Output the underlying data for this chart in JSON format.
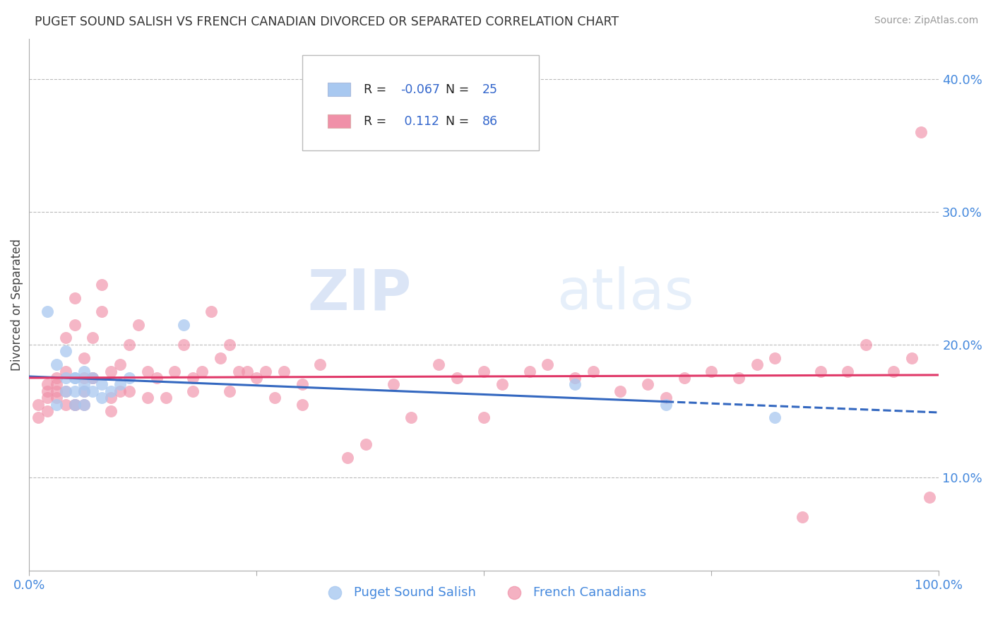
{
  "title": "PUGET SOUND SALISH VS FRENCH CANADIAN DIVORCED OR SEPARATED CORRELATION CHART",
  "source": "Source: ZipAtlas.com",
  "ylabel": "Divorced or Separated",
  "watermark_zip": "ZIP",
  "watermark_atlas": "atlas",
  "x_min": 0.0,
  "x_max": 1.0,
  "y_min": 0.03,
  "y_max": 0.43,
  "y_ticks": [
    0.1,
    0.2,
    0.3,
    0.4
  ],
  "x_ticks": [
    0.0,
    0.25,
    0.5,
    0.75,
    1.0
  ],
  "x_tick_labels": [
    "0.0%",
    "",
    "",
    "",
    "100.0%"
  ],
  "y_tick_labels": [
    "10.0%",
    "20.0%",
    "30.0%",
    "40.0%"
  ],
  "blue_R": -0.067,
  "blue_N": 25,
  "pink_R": 0.112,
  "pink_N": 86,
  "blue_color": "#A8C8F0",
  "pink_color": "#F090A8",
  "blue_line_color": "#3468C0",
  "pink_line_color": "#E03868",
  "grid_color": "#BBBBBB",
  "title_color": "#333333",
  "axis_color": "#4488DD",
  "legend_label_color": "#222222",
  "legend_value_color": "#3366CC",
  "blue_x": [
    0.02,
    0.03,
    0.04,
    0.04,
    0.04,
    0.05,
    0.05,
    0.05,
    0.06,
    0.06,
    0.06,
    0.07,
    0.07,
    0.08,
    0.08,
    0.09,
    0.03,
    0.05,
    0.06,
    0.1,
    0.11,
    0.17,
    0.6,
    0.7,
    0.82
  ],
  "blue_y": [
    0.225,
    0.185,
    0.175,
    0.165,
    0.195,
    0.175,
    0.165,
    0.175,
    0.17,
    0.165,
    0.18,
    0.175,
    0.165,
    0.16,
    0.17,
    0.165,
    0.155,
    0.155,
    0.155,
    0.17,
    0.175,
    0.215,
    0.17,
    0.155,
    0.145
  ],
  "pink_x": [
    0.01,
    0.01,
    0.02,
    0.02,
    0.02,
    0.03,
    0.03,
    0.03,
    0.04,
    0.04,
    0.04,
    0.05,
    0.05,
    0.05,
    0.06,
    0.06,
    0.06,
    0.07,
    0.07,
    0.08,
    0.08,
    0.09,
    0.09,
    0.1,
    0.1,
    0.11,
    0.12,
    0.13,
    0.14,
    0.15,
    0.16,
    0.17,
    0.18,
    0.19,
    0.2,
    0.21,
    0.22,
    0.23,
    0.24,
    0.25,
    0.26,
    0.27,
    0.28,
    0.3,
    0.32,
    0.35,
    0.37,
    0.4,
    0.42,
    0.45,
    0.47,
    0.5,
    0.52,
    0.55,
    0.57,
    0.6,
    0.62,
    0.65,
    0.68,
    0.7,
    0.72,
    0.75,
    0.78,
    0.8,
    0.82,
    0.85,
    0.87,
    0.9,
    0.92,
    0.95,
    0.97,
    0.02,
    0.03,
    0.04,
    0.05,
    0.06,
    0.07,
    0.09,
    0.11,
    0.13,
    0.18,
    0.22,
    0.3,
    0.5,
    0.98,
    0.99
  ],
  "pink_y": [
    0.155,
    0.145,
    0.15,
    0.165,
    0.17,
    0.16,
    0.165,
    0.175,
    0.155,
    0.165,
    0.205,
    0.155,
    0.235,
    0.215,
    0.165,
    0.175,
    0.19,
    0.175,
    0.205,
    0.245,
    0.225,
    0.16,
    0.18,
    0.165,
    0.185,
    0.2,
    0.215,
    0.18,
    0.175,
    0.16,
    0.18,
    0.2,
    0.175,
    0.18,
    0.225,
    0.19,
    0.2,
    0.18,
    0.18,
    0.175,
    0.18,
    0.16,
    0.18,
    0.17,
    0.185,
    0.115,
    0.125,
    0.17,
    0.145,
    0.185,
    0.175,
    0.18,
    0.17,
    0.18,
    0.185,
    0.175,
    0.18,
    0.165,
    0.17,
    0.16,
    0.175,
    0.18,
    0.175,
    0.185,
    0.19,
    0.07,
    0.18,
    0.18,
    0.2,
    0.18,
    0.19,
    0.16,
    0.17,
    0.18,
    0.155,
    0.155,
    0.175,
    0.15,
    0.165,
    0.16,
    0.165,
    0.165,
    0.155,
    0.145,
    0.36,
    0.085
  ]
}
